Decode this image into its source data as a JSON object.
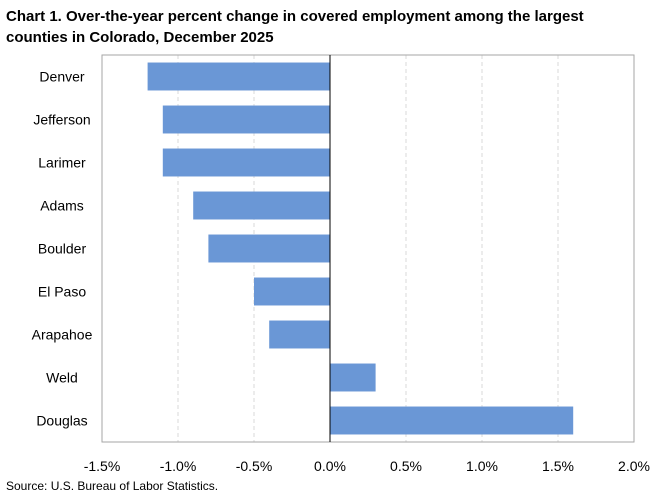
{
  "chart_data": {
    "type": "bar",
    "orientation": "horizontal",
    "title": "Chart 1. Over-the-year percent change in covered employment among the largest counties in Colorado, December 2025",
    "source": "Source: U.S. Bureau of Labor Statistics.",
    "categories": [
      "Denver",
      "Jefferson",
      "Larimer",
      "Adams",
      "Boulder",
      "El Paso",
      "Arapahoe",
      "Weld",
      "Douglas"
    ],
    "values": [
      -1.2,
      -1.1,
      -1.1,
      -0.9,
      -0.8,
      -0.5,
      -0.4,
      0.3,
      1.6
    ],
    "xlim": [
      -1.5,
      2.0
    ],
    "x_ticks": [
      -1.5,
      -1.0,
      -0.5,
      0.0,
      0.5,
      1.0,
      1.5,
      2.0
    ],
    "x_tick_labels": [
      "-1.5%",
      "-1.0%",
      "-0.5%",
      "0.0%",
      "0.5%",
      "1.0%",
      "1.5%",
      "2.0%"
    ],
    "xlabel": "",
    "ylabel": "",
    "grid": "vertical dashed",
    "legend": "none",
    "bar_color": "#6a97d6"
  }
}
